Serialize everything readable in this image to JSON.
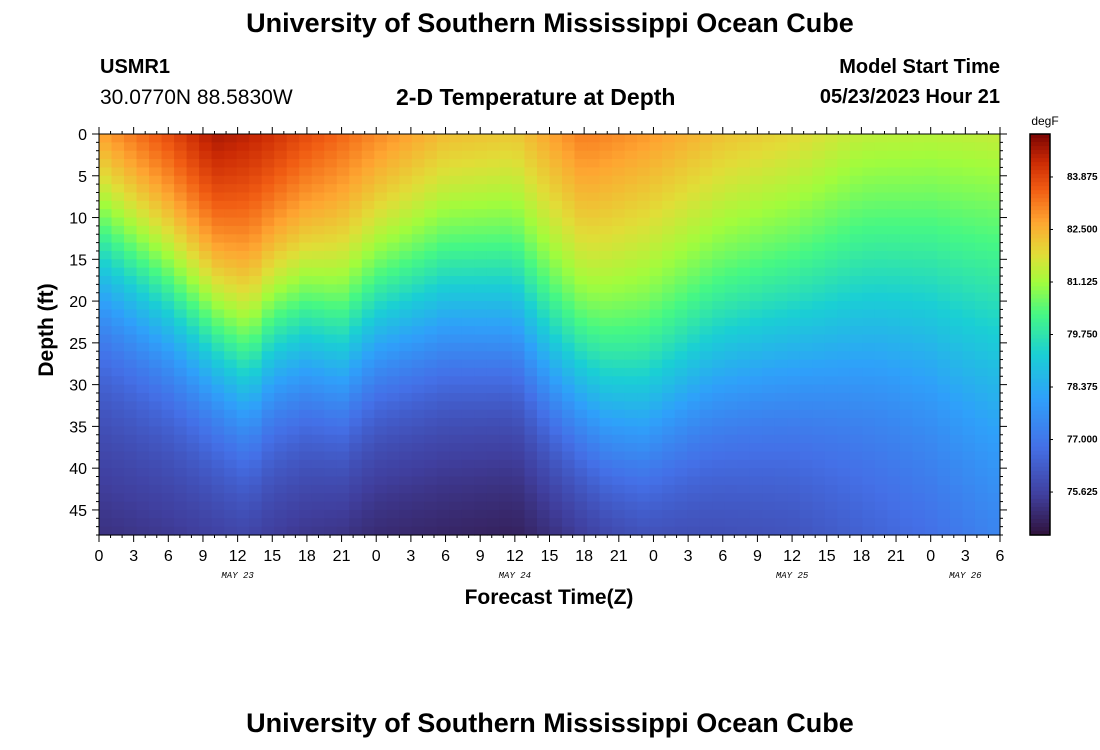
{
  "header": {
    "title": "University of Southern Mississippi Ocean Cube",
    "station": "USMR1",
    "coords": "30.0770N  88.5830W",
    "subtitle": "2-D Temperature at Depth",
    "model_start_label": "Model Start Time",
    "model_start_value": "05/23/2023 Hour 21"
  },
  "footer": {
    "title": "University of Southern Mississippi Ocean Cube"
  },
  "chart_data": {
    "type": "heatmap",
    "title": "2-D Temperature at Depth",
    "xlabel": "Forecast Time(Z)",
    "ylabel": "Depth (ft)",
    "x_ticks": [
      "0",
      "3",
      "6",
      "9",
      "12",
      "15",
      "18",
      "21",
      "0",
      "3",
      "6",
      "9",
      "12",
      "15",
      "18",
      "21",
      "0",
      "3",
      "6",
      "9",
      "12",
      "15",
      "18",
      "21",
      "0",
      "3",
      "6"
    ],
    "x_range_hours": [
      0,
      78
    ],
    "date_labels": [
      {
        "label": "MAY 23",
        "hour": 12
      },
      {
        "label": "MAY 24",
        "hour": 36
      },
      {
        "label": "MAY 25",
        "hour": 60
      },
      {
        "label": "MAY 26",
        "hour": 75
      }
    ],
    "y_ticks": [
      "0",
      "5",
      "10",
      "15",
      "20",
      "25",
      "30",
      "35",
      "40",
      "45"
    ],
    "y_range_ft": [
      0,
      48
    ],
    "colorbar": {
      "unit": "degF",
      "range": [
        74.5,
        85.0
      ],
      "tick_labels": [
        "83.875",
        "82.500",
        "81.125",
        "79.750",
        "78.375",
        "77.000",
        "75.625"
      ],
      "tick_values": [
        83.875,
        82.5,
        81.125,
        79.75,
        78.375,
        77.0,
        75.625
      ]
    },
    "thermocline_depth_ft": [
      [
        0,
        15
      ],
      [
        6,
        21
      ],
      [
        10,
        26
      ],
      [
        13,
        30
      ],
      [
        15,
        26
      ],
      [
        18,
        25
      ],
      [
        21,
        28
      ],
      [
        24,
        24
      ],
      [
        30,
        22
      ],
      [
        36,
        23
      ],
      [
        39,
        29
      ],
      [
        44,
        35
      ],
      [
        47,
        36
      ],
      [
        50,
        33
      ],
      [
        53,
        30
      ],
      [
        58,
        28
      ],
      [
        63,
        27
      ],
      [
        68,
        26
      ],
      [
        72,
        28
      ],
      [
        75,
        32
      ],
      [
        78,
        36
      ]
    ],
    "surface_temp_degF": [
      [
        0,
        83.2
      ],
      [
        6,
        84.0
      ],
      [
        10,
        84.7
      ],
      [
        15,
        84.3
      ],
      [
        21,
        83.5
      ],
      [
        30,
        82.5
      ],
      [
        36,
        82.3
      ],
      [
        42,
        83.2
      ],
      [
        48,
        82.8
      ],
      [
        54,
        82.3
      ],
      [
        60,
        82.0
      ],
      [
        66,
        81.5
      ],
      [
        72,
        81.4
      ],
      [
        78,
        81.5
      ]
    ],
    "bottom_temp_degF": [
      [
        0,
        75.2
      ],
      [
        12,
        75.5
      ],
      [
        24,
        75.0
      ],
      [
        36,
        74.8
      ],
      [
        48,
        75.7
      ],
      [
        60,
        76.0
      ],
      [
        72,
        76.8
      ],
      [
        78,
        77.4
      ]
    ]
  }
}
